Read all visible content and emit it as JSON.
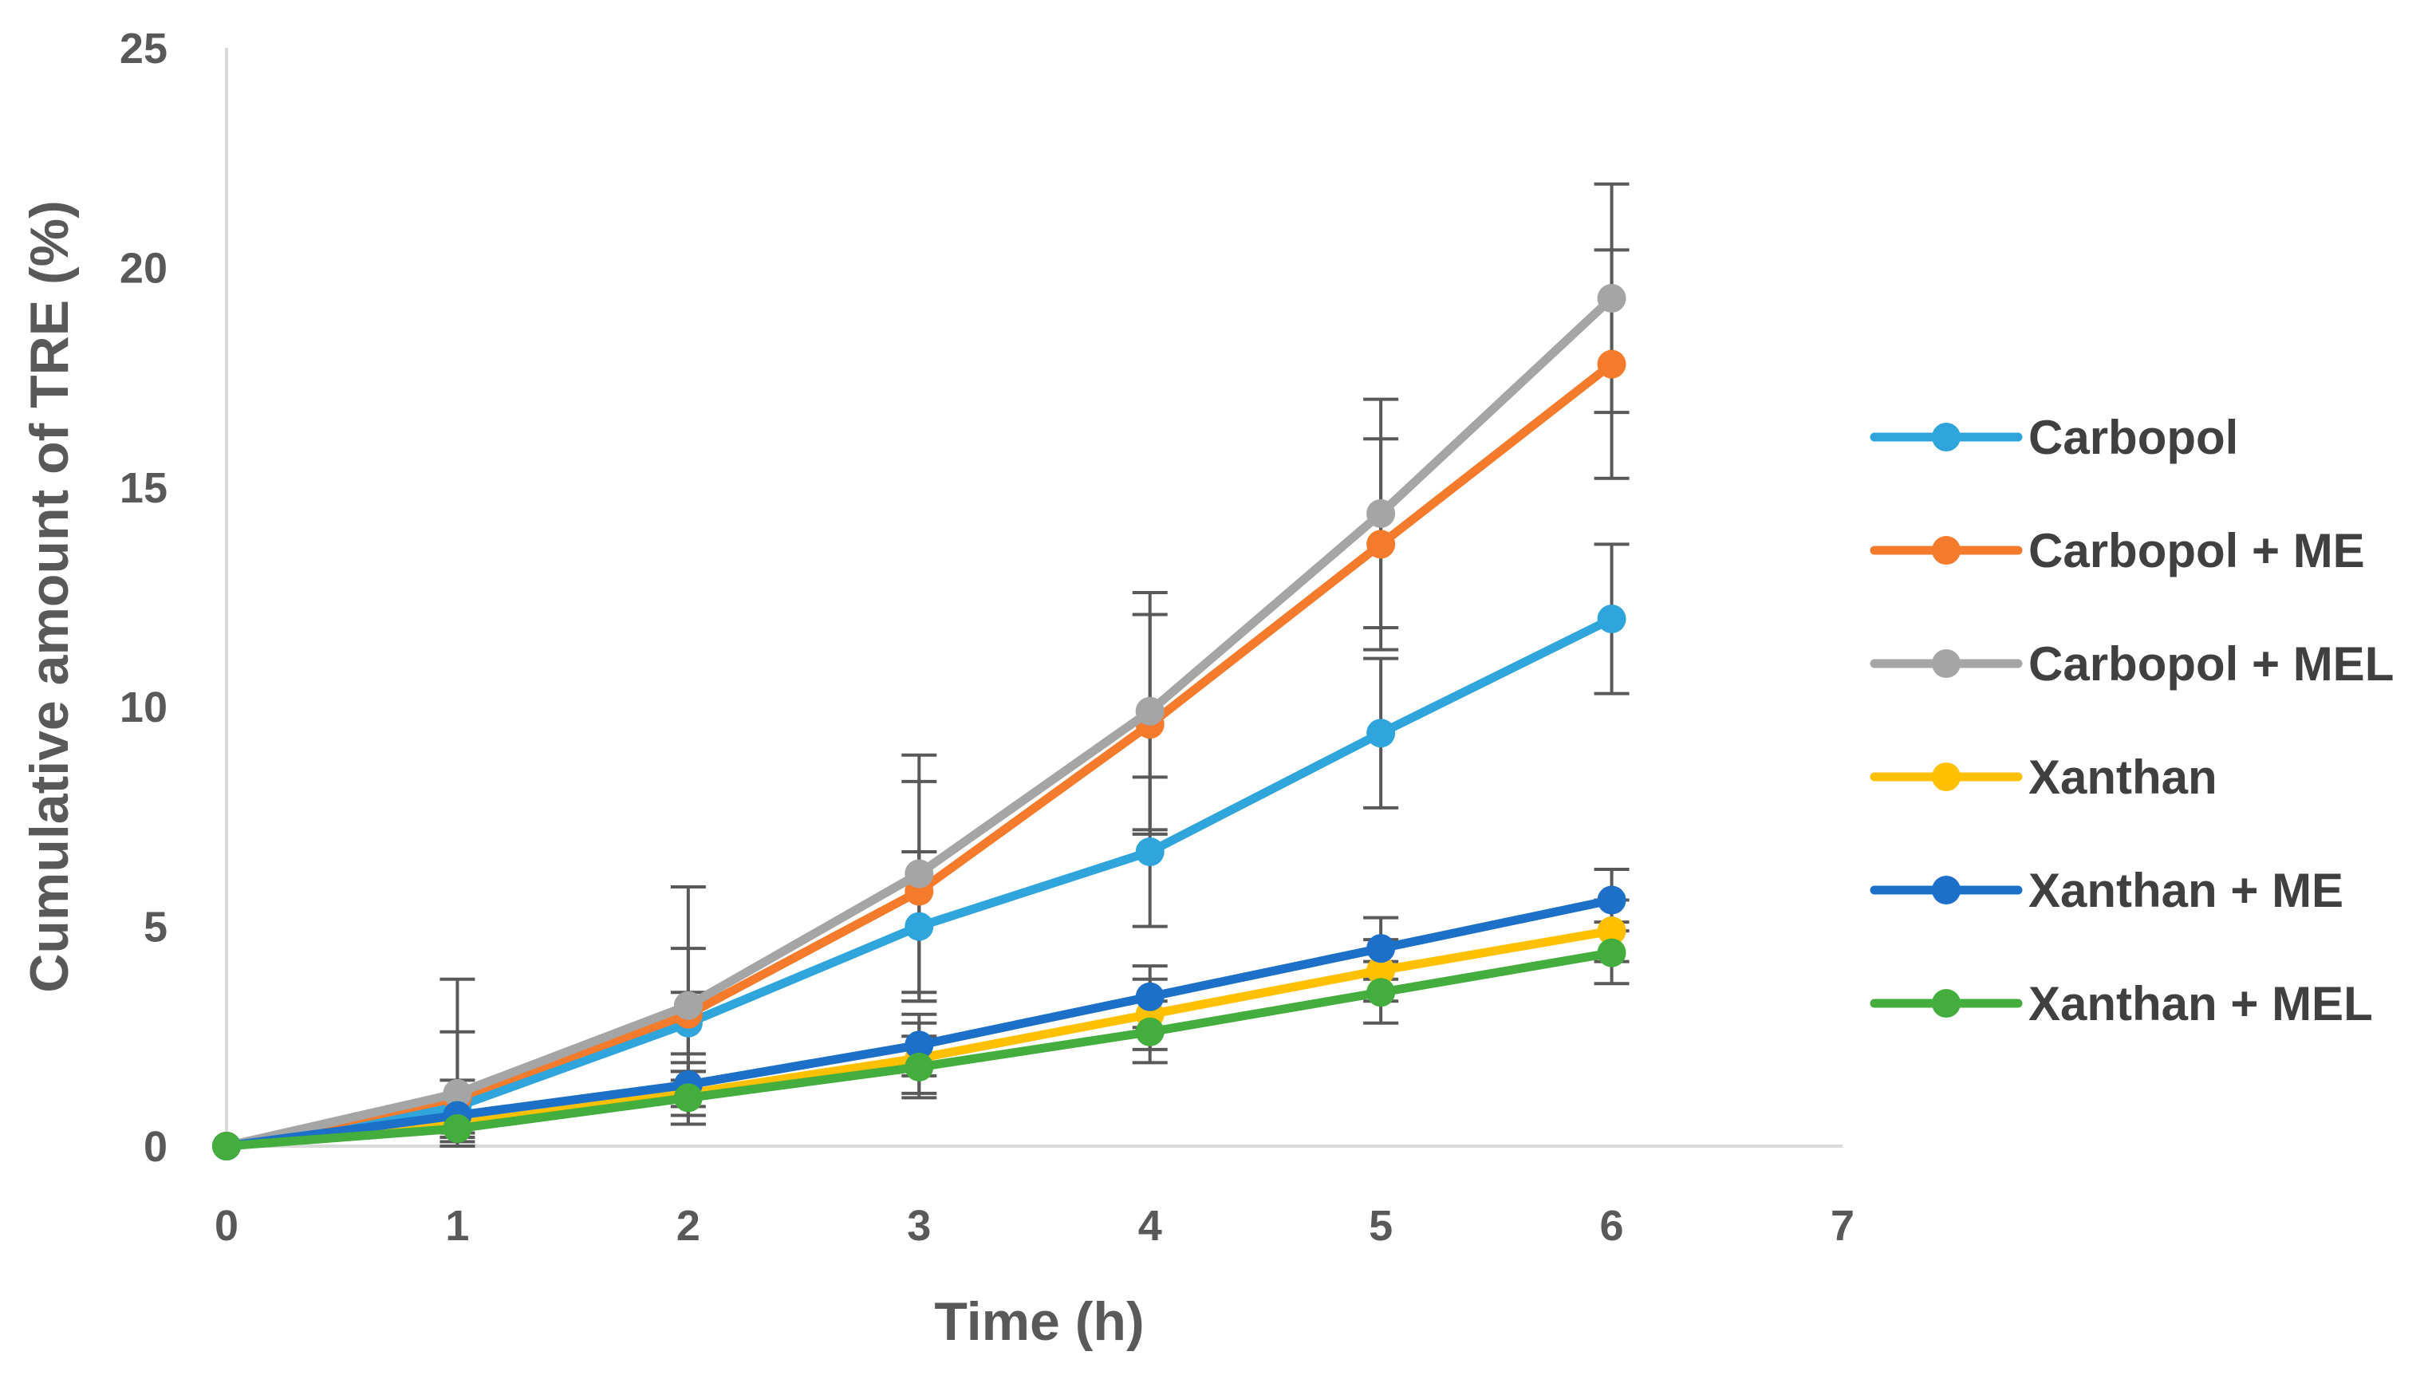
{
  "chart_data": {
    "type": "line",
    "title": "",
    "xlabel": "Time (h)",
    "ylabel": "Cumulative amount of TRE (%)",
    "xlim": [
      0,
      7
    ],
    "ylim": [
      0,
      25
    ],
    "x_ticks": [
      0,
      1,
      2,
      3,
      4,
      5,
      6,
      7
    ],
    "y_ticks": [
      0,
      5,
      10,
      15,
      20,
      25
    ],
    "grid": false,
    "legend_position": "right",
    "x": [
      0,
      1,
      2,
      3,
      4,
      5,
      6
    ],
    "series": [
      {
        "name": "Carbopol",
        "color": "#2FA5DB",
        "values": [
          0,
          0.9,
          2.8,
          5.0,
          6.7,
          9.4,
          12.0
        ],
        "errors": [
          0,
          0.6,
          0.7,
          1.7,
          1.7,
          1.7,
          1.7
        ]
      },
      {
        "name": "Carbopol + ME",
        "color": "#F47B2C",
        "values": [
          0,
          1.1,
          3.0,
          5.8,
          9.6,
          13.7,
          17.8
        ],
        "errors": [
          0,
          1.5,
          1.5,
          2.5,
          2.5,
          2.4,
          2.6
        ]
      },
      {
        "name": "Carbopol + MEL",
        "color": "#A5A5A5",
        "values": [
          0,
          1.2,
          3.2,
          6.2,
          9.9,
          14.4,
          19.3
        ],
        "errors": [
          0,
          2.6,
          2.7,
          2.7,
          2.7,
          2.6,
          2.6
        ]
      },
      {
        "name": "Xanthan",
        "color": "#FFC000",
        "values": [
          0,
          0.5,
          1.2,
          2.0,
          3.0,
          4.0,
          4.9
        ],
        "errors": [
          0,
          0.3,
          0.5,
          0.8,
          0.8,
          0.7,
          0.7
        ]
      },
      {
        "name": "Xanthan + ME",
        "color": "#1C70C8",
        "values": [
          0,
          0.7,
          1.4,
          2.3,
          3.4,
          4.5,
          5.6
        ],
        "errors": [
          0,
          0.3,
          0.5,
          0.7,
          0.7,
          0.7,
          0.7
        ]
      },
      {
        "name": "Xanthan + MEL",
        "color": "#43AE3D",
        "values": [
          0,
          0.4,
          1.1,
          1.8,
          2.6,
          3.5,
          4.4
        ],
        "errors": [
          0,
          0.3,
          0.6,
          0.7,
          0.7,
          0.7,
          0.7
        ]
      }
    ]
  }
}
